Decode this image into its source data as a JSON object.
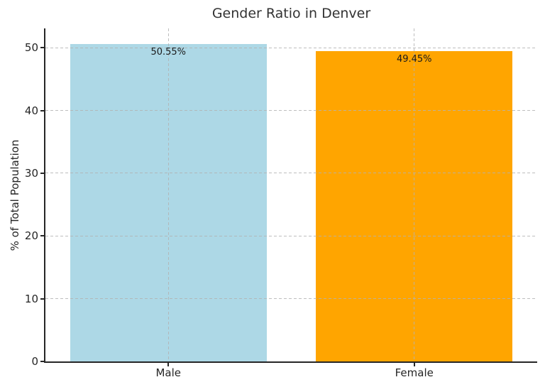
{
  "chart_data": {
    "type": "bar",
    "title": "Gender Ratio in Denver",
    "xlabel": "",
    "ylabel": "% of Total Population",
    "categories": [
      "Male",
      "Female"
    ],
    "values": [
      50.55,
      49.45
    ],
    "bar_labels": [
      "50.55%",
      "49.45%"
    ],
    "bar_colors": [
      "#ADD8E6",
      "#FFA500"
    ],
    "yticks": [
      0,
      10,
      20,
      30,
      40,
      50
    ],
    "ylim": [
      0,
      53.08
    ],
    "grid": true,
    "grid_style": "dashed",
    "legend": "none",
    "background_color": "#FFFFFF",
    "spine_color": "#262626",
    "text_color": "#262626",
    "grid_color": "#B2B2B2"
  }
}
